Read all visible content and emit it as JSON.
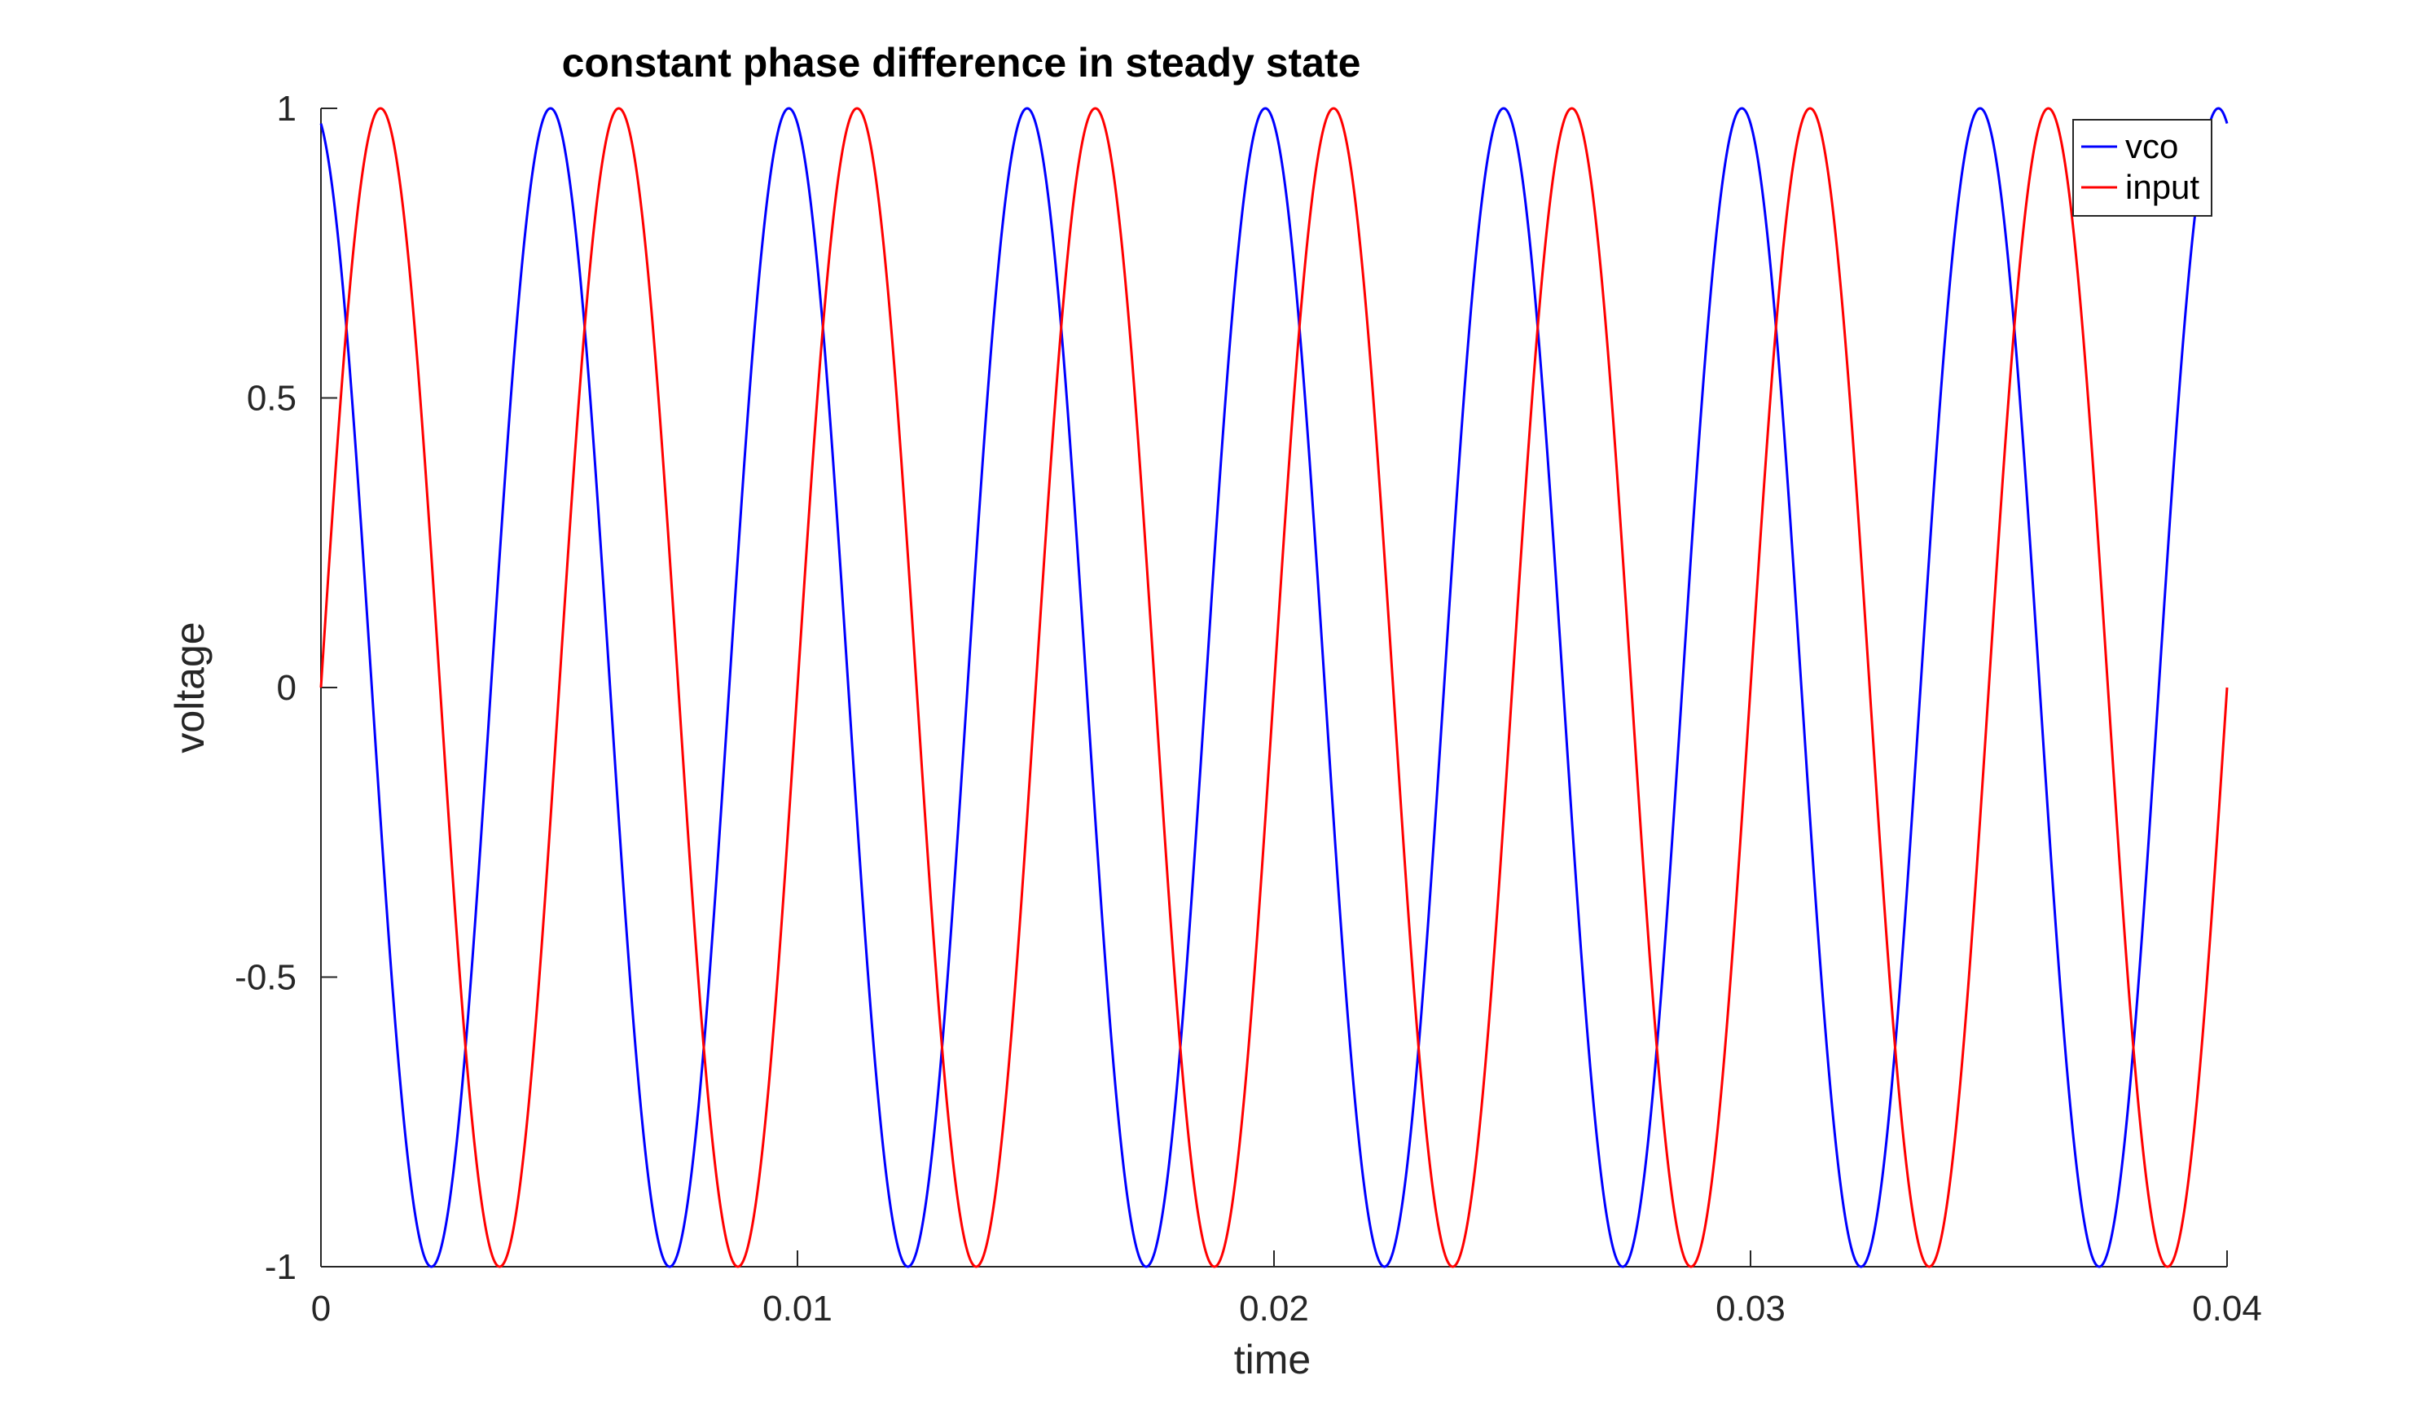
{
  "chart_data": {
    "type": "line",
    "title": "constant phase difference in steady state",
    "xlabel": "time",
    "ylabel": "voltage",
    "xlim": [
      0,
      0.04
    ],
    "ylim": [
      -1,
      1
    ],
    "x_ticks": [
      0,
      0.01,
      0.02,
      0.03,
      0.04
    ],
    "x_tick_labels": [
      "0",
      "0.01",
      "0.02",
      "0.03",
      "0.04"
    ],
    "y_ticks": [
      -1,
      -0.5,
      0,
      0.5,
      1
    ],
    "y_tick_labels": [
      "-1",
      "-0.5",
      "0",
      "0.5",
      "1"
    ],
    "grid": false,
    "legend_position": "top-right",
    "series": [
      {
        "name": "vco",
        "color": "#0000ff",
        "function": "sin",
        "amplitude": 1,
        "frequency_hz": 200,
        "phase_rad": 1.8
      },
      {
        "name": "input",
        "color": "#ff0000",
        "function": "sin",
        "amplitude": 1,
        "frequency_hz": 200,
        "phase_rad": 0.0
      }
    ]
  }
}
